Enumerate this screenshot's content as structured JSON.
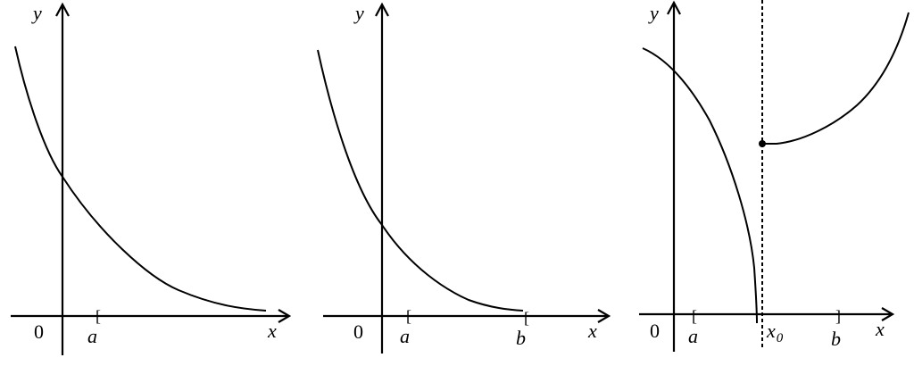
{
  "panels": [
    {
      "y_label": "y",
      "x_label": "x",
      "origin_label": "0",
      "a_label": "a",
      "a_bracket": "["
    },
    {
      "y_label": "y",
      "x_label": "x",
      "origin_label": "0",
      "a_label": "a",
      "a_bracket": "[",
      "b_label": "b",
      "b_bracket": "["
    },
    {
      "y_label": "y",
      "x_label": "x",
      "origin_label": "0",
      "a_label": "a",
      "a_bracket": "[",
      "x0_label": "x",
      "x0_subscript": "0",
      "b_label": "b",
      "b_bracket": "]"
    }
  ]
}
